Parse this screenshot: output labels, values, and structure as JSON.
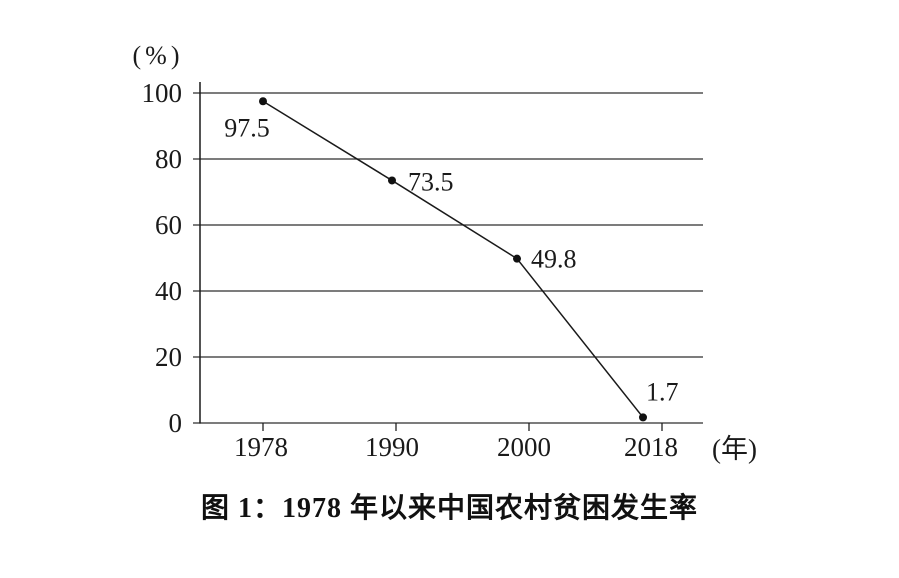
{
  "chart_data": {
    "type": "line",
    "title": "图 1：1978 年以来中国农村贫困发生率",
    "categories": [
      "1978",
      "1990",
      "2000",
      "2018"
    ],
    "values": [
      97.5,
      73.5,
      49.8,
      1.7
    ],
    "point_labels": [
      "97.5",
      "73.5",
      "49.8",
      "1.7"
    ],
    "xlabel": "(年)",
    "ylabel": "(%)",
    "ylim": [
      0,
      100
    ],
    "yticks": [
      0,
      20,
      40,
      60,
      80,
      100
    ],
    "grid": "horizontal",
    "legend": "none",
    "marker": "filled-circle",
    "colors": {
      "line": "#1a1a1a",
      "marker": "#111111",
      "grid": "#2e2e2e",
      "axis": "#1a1a1a",
      "text": "#1a1a1a",
      "background": "#ffffff"
    }
  }
}
